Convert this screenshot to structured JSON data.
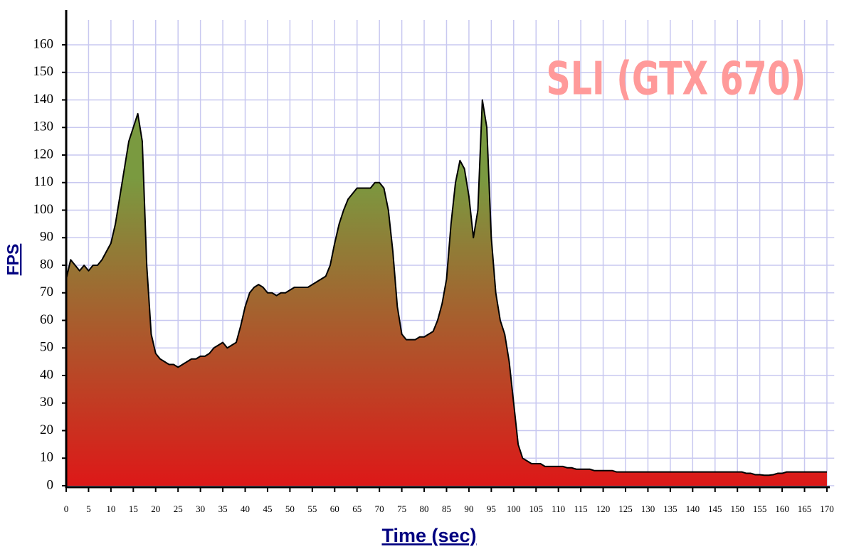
{
  "chart_data": {
    "type": "area",
    "annotation": "SLI (GTX 670)",
    "x_label": "Time (sec)",
    "y_label": "FPS",
    "xlim": [
      0,
      171
    ],
    "ylim": [
      0,
      172
    ],
    "xticks": [
      0,
      5,
      10,
      15,
      20,
      25,
      30,
      35,
      40,
      45,
      50,
      55,
      60,
      65,
      70,
      75,
      80,
      85,
      90,
      95,
      100,
      105,
      110,
      115,
      120,
      125,
      130,
      135,
      140,
      145,
      150,
      155,
      160,
      165,
      170
    ],
    "yticks": [
      0,
      10,
      20,
      30,
      40,
      50,
      60,
      70,
      80,
      90,
      100,
      110,
      120,
      130,
      140,
      150,
      160
    ],
    "grid": true,
    "line_color": "#000000",
    "fill_top_color": "#7a9a40",
    "fill_bottom_color": "#dd1818",
    "grid_color": "#c8c8f0",
    "x": [
      0,
      1,
      2,
      3,
      4,
      5,
      6,
      7,
      8,
      9,
      10,
      11,
      12,
      13,
      14,
      15,
      16,
      17,
      18,
      19,
      20,
      21,
      22,
      23,
      24,
      25,
      26,
      27,
      28,
      29,
      30,
      31,
      32,
      33,
      34,
      35,
      36,
      37,
      38,
      39,
      40,
      41,
      42,
      43,
      44,
      45,
      46,
      47,
      48,
      49,
      50,
      51,
      52,
      53,
      54,
      55,
      56,
      57,
      58,
      59,
      60,
      61,
      62,
      63,
      64,
      65,
      66,
      67,
      68,
      69,
      70,
      71,
      72,
      73,
      74,
      75,
      76,
      77,
      78,
      79,
      80,
      81,
      82,
      83,
      84,
      85,
      86,
      87,
      88,
      89,
      90,
      91,
      92,
      93,
      94,
      95,
      96,
      97,
      98,
      99,
      100,
      101,
      102,
      103,
      104,
      105,
      106,
      107,
      108,
      109,
      110,
      111,
      112,
      113,
      114,
      115,
      116,
      117,
      118,
      119,
      120,
      121,
      122,
      123,
      124,
      125,
      126,
      127,
      128,
      129,
      130,
      131,
      132,
      133,
      134,
      135,
      136,
      137,
      138,
      139,
      140,
      141,
      142,
      143,
      144,
      145,
      146,
      147,
      148,
      149,
      150,
      151,
      152,
      153,
      154,
      155,
      156,
      157,
      158,
      159,
      160,
      161,
      162,
      163,
      164,
      165,
      166,
      167,
      168,
      169,
      170
    ],
    "values": [
      75,
      82,
      80,
      78,
      80,
      78,
      80,
      80,
      82,
      85,
      88,
      95,
      105,
      115,
      125,
      130,
      135,
      125,
      80,
      55,
      48,
      46,
      45,
      44,
      44,
      43,
      44,
      45,
      46,
      46,
      47,
      47,
      48,
      50,
      51,
      52,
      50,
      51,
      52,
      58,
      65,
      70,
      72,
      73,
      72,
      70,
      70,
      69,
      70,
      70,
      71,
      72,
      72,
      72,
      72,
      73,
      74,
      75,
      76,
      80,
      88,
      95,
      100,
      104,
      106,
      108,
      108,
      108,
      108,
      110,
      110,
      108,
      100,
      85,
      65,
      55,
      53,
      53,
      53,
      54,
      54,
      55,
      56,
      60,
      66,
      75,
      95,
      110,
      118,
      115,
      105,
      90,
      100,
      140,
      130,
      90,
      70,
      60,
      55,
      45,
      30,
      15,
      10,
      9,
      8,
      8,
      8,
      7,
      7,
      7,
      7,
      7,
      6.5,
      6.5,
      6,
      6,
      6,
      6,
      5.5,
      5.5,
      5.5,
      5.5,
      5.5,
      5,
      5,
      5,
      5,
      5,
      5,
      5,
      5,
      5,
      5,
      5,
      5,
      5,
      5,
      5,
      5,
      5,
      5,
      5,
      5,
      5,
      5,
      5,
      5,
      5,
      5,
      5,
      5,
      5,
      4.5,
      4.5,
      4,
      4,
      3.8,
      3.8,
      4,
      4.5,
      4.5,
      5,
      5,
      5,
      5,
      5,
      5,
      5,
      5,
      5,
      5
    ]
  }
}
